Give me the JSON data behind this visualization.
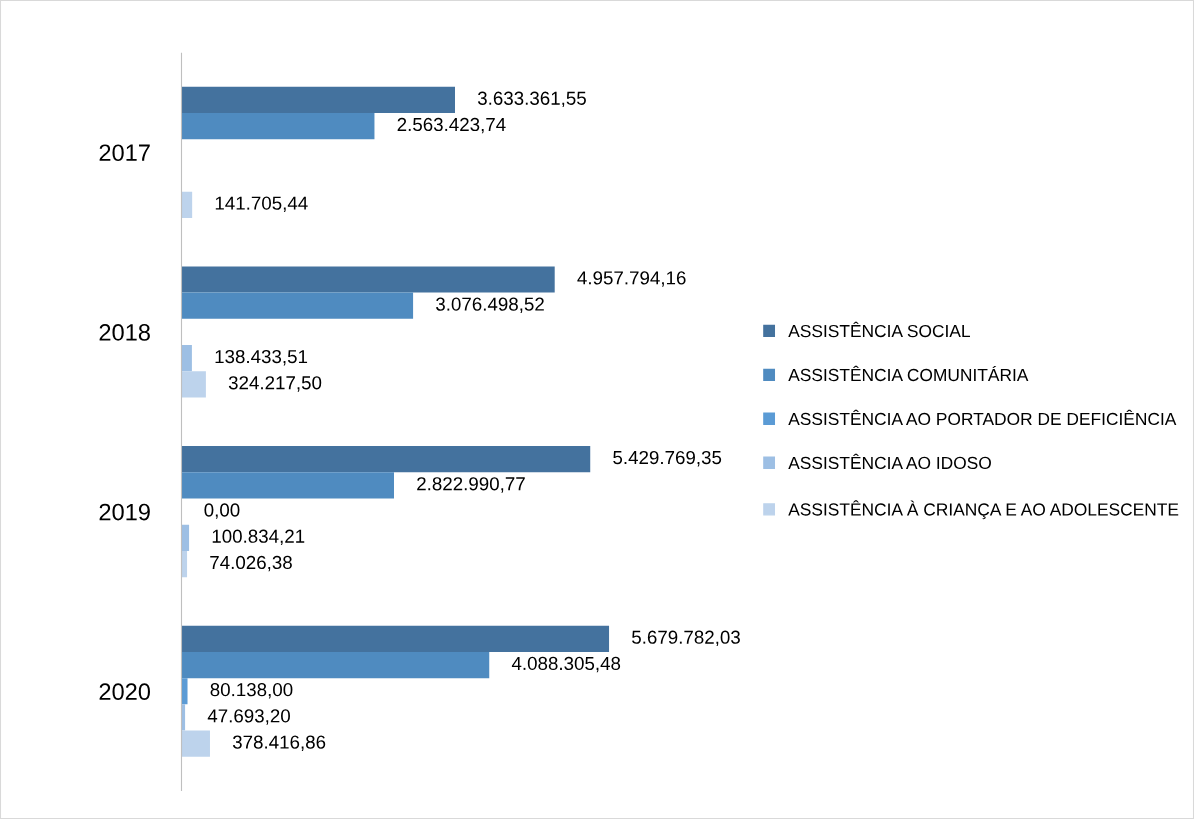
{
  "chart_data": {
    "type": "bar",
    "orientation": "horizontal",
    "categories": [
      "2017",
      "2018",
      "2019",
      "2020"
    ],
    "series": [
      {
        "name": "ASSISTÊNCIA SOCIAL",
        "color": "#44729e",
        "values": [
          3633361.55,
          4957794.16,
          5429769.35,
          5679782.03
        ],
        "value_labels": [
          "3.633.361,55",
          "4.957.794,16",
          "5.429.769,35",
          "5.679.782,03"
        ]
      },
      {
        "name": "ASSISTÊNCIA COMUNITÁRIA",
        "color": "#4f8bc0",
        "values": [
          2563423.74,
          3076498.52,
          2822990.77,
          4088305.48
        ],
        "value_labels": [
          "2.563.423,74",
          "3.076.498,52",
          "2.822.990,77",
          "4.088.305,48"
        ]
      },
      {
        "name": "ASSISTÊNCIA AO PORTADOR DE DEFICIÊNCIA",
        "color": "#5b9bd5",
        "values": [
          null,
          null,
          0,
          80138.0
        ],
        "value_labels": [
          null,
          null,
          "0,00",
          "80.138,00"
        ]
      },
      {
        "name": "ASSISTÊNCIA AO IDOSO",
        "color": "#9dbfe4",
        "values": [
          null,
          138433.51,
          100834.21,
          47693.2
        ],
        "value_labels": [
          null,
          "138.433,51",
          "100.834,21",
          "47.693,20"
        ]
      },
      {
        "name": "ASSISTÊNCIA À CRIANÇA E AO ADOLESCENTE",
        "color": "#bdd3ec",
        "values": [
          141705.44,
          324217.5,
          74026.38,
          378416.86
        ],
        "value_labels": [
          "141.705,44",
          "324.217,50",
          "74.026,38",
          "378.416,86"
        ]
      }
    ],
    "legend": "right",
    "grid": false
  }
}
